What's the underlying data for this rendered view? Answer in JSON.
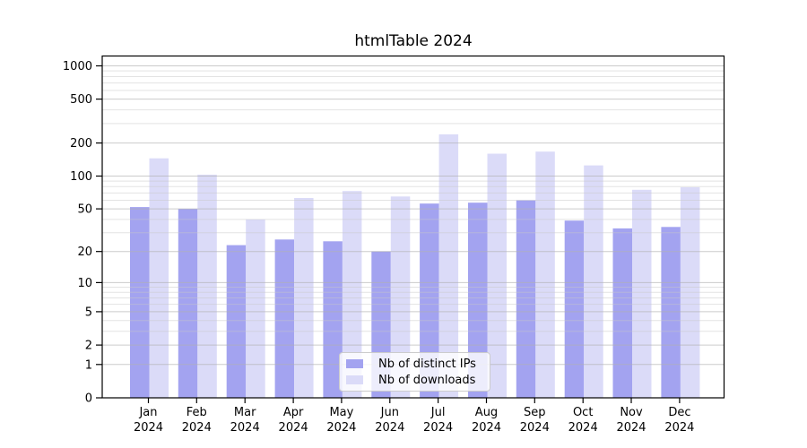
{
  "chart_data": {
    "type": "bar",
    "title": "htmlTable 2024",
    "y_scale": "log(value+1)",
    "y_ticks": [
      1000,
      500,
      200,
      100,
      50,
      20,
      10,
      5,
      2,
      1,
      0
    ],
    "ylim": [
      0,
      1240
    ],
    "grid": true,
    "legend_position": "inside lower center",
    "categories": [
      "Jan",
      "Feb",
      "Mar",
      "Apr",
      "May",
      "Jun",
      "Jul",
      "Aug",
      "Sep",
      "Oct",
      "Nov",
      "Dec"
    ],
    "year_label": "2024",
    "series": [
      {
        "id": "distinct-ips",
        "name": "Nb of distinct IPs",
        "color": "#a3a3f0",
        "values": [
          52,
          50,
          23,
          26,
          25,
          20,
          56,
          57,
          60,
          39,
          33,
          34
        ]
      },
      {
        "id": "downloads",
        "name": "Nb of downloads",
        "color": "#dbdbf8",
        "values": [
          145,
          103,
          40,
          63,
          73,
          65,
          240,
          160,
          167,
          125,
          75,
          79
        ]
      }
    ]
  }
}
